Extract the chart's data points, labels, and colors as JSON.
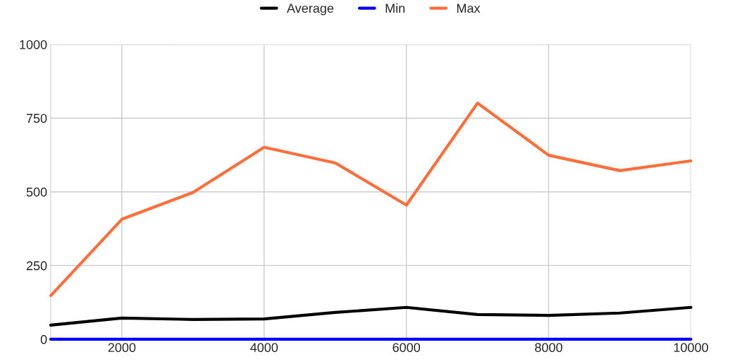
{
  "chart_data": {
    "type": "line",
    "x": [
      1000,
      2000,
      3000,
      4000,
      5000,
      6000,
      7000,
      8000,
      9000,
      10000
    ],
    "series": [
      {
        "name": "Average",
        "color": "#000000",
        "values": [
          48,
          72,
          67,
          69,
          91,
          108,
          84,
          81,
          89,
          108
        ]
      },
      {
        "name": "Min",
        "color": "#0000ff",
        "values": [
          0,
          0,
          0,
          0,
          0,
          0,
          0,
          0,
          0,
          0
        ]
      },
      {
        "name": "Max",
        "color": "#ff6d38",
        "values": [
          148,
          407,
          498,
          651,
          598,
          455,
          801,
          624,
          572,
          605
        ]
      }
    ],
    "xlim": [
      1000,
      10000
    ],
    "xticks": [
      2000,
      4000,
      6000,
      8000,
      10000
    ],
    "ylim": [
      0,
      1000
    ],
    "yticks": [
      0,
      250,
      500,
      750,
      1000
    ],
    "grid": true,
    "legend": "top",
    "line_style": "solid",
    "marker": "none"
  }
}
